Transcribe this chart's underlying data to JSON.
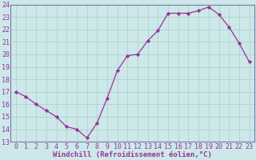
{
  "x": [
    0,
    1,
    2,
    3,
    4,
    5,
    6,
    7,
    8,
    9,
    10,
    11,
    12,
    13,
    14,
    15,
    16,
    17,
    18,
    19,
    20,
    21,
    22,
    23
  ],
  "y": [
    17.0,
    16.6,
    16.0,
    15.5,
    15.0,
    14.2,
    14.0,
    13.3,
    14.5,
    16.5,
    18.7,
    19.9,
    20.0,
    21.1,
    21.9,
    23.3,
    23.3,
    23.3,
    23.5,
    23.8,
    23.2,
    22.2,
    20.9,
    19.4
  ],
  "line_color": "#993399",
  "marker": "D",
  "marker_size": 2.2,
  "bg_color": "#cce8e8",
  "grid_color": "#aacccc",
  "xlabel": "Windchill (Refroidissement éolien,°C)",
  "ylim": [
    13,
    24
  ],
  "xlim": [
    -0.5,
    23.5
  ],
  "yticks": [
    13,
    14,
    15,
    16,
    17,
    18,
    19,
    20,
    21,
    22,
    23,
    24
  ],
  "xticks": [
    0,
    1,
    2,
    3,
    4,
    5,
    6,
    7,
    8,
    9,
    10,
    11,
    12,
    13,
    14,
    15,
    16,
    17,
    18,
    19,
    20,
    21,
    22,
    23
  ],
  "label_color": "#993399",
  "xlabel_fontsize": 6.5,
  "tick_fontsize": 6.0,
  "spine_color": "#7777aa",
  "lw": 0.9
}
